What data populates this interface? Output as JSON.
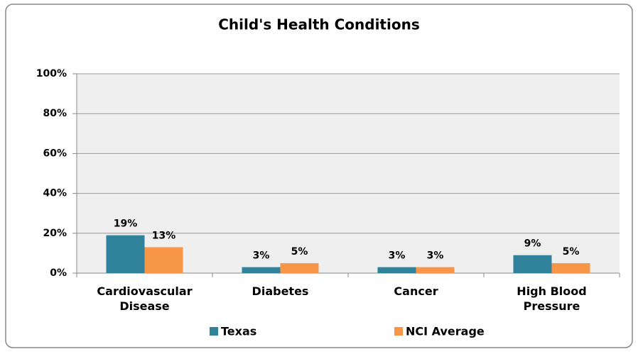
{
  "chart_data": {
    "type": "bar",
    "title": "Child's Health Conditions",
    "categories": [
      "Cardiovascular Disease",
      "Diabetes",
      "Cancer",
      "High Blood Pressure"
    ],
    "series": [
      {
        "name": "Texas",
        "color": "#2f8299",
        "values": [
          19,
          3,
          3,
          9
        ],
        "value_labels": [
          "19%",
          "3%",
          "3%",
          "9%"
        ]
      },
      {
        "name": "NCI Average",
        "color": "#f79646",
        "values": [
          13,
          5,
          3,
          5
        ],
        "value_labels": [
          "13%",
          "5%",
          "3%",
          "5%"
        ]
      }
    ],
    "ylim": [
      0,
      100
    ],
    "yticks": [
      {
        "value": 0,
        "label": "0%"
      },
      {
        "value": 20,
        "label": "20%"
      },
      {
        "value": 40,
        "label": "40%"
      },
      {
        "value": 60,
        "label": "60%"
      },
      {
        "value": 80,
        "label": "80%"
      },
      {
        "value": 100,
        "label": "100%"
      }
    ],
    "grid": true,
    "legend": "bottom"
  }
}
